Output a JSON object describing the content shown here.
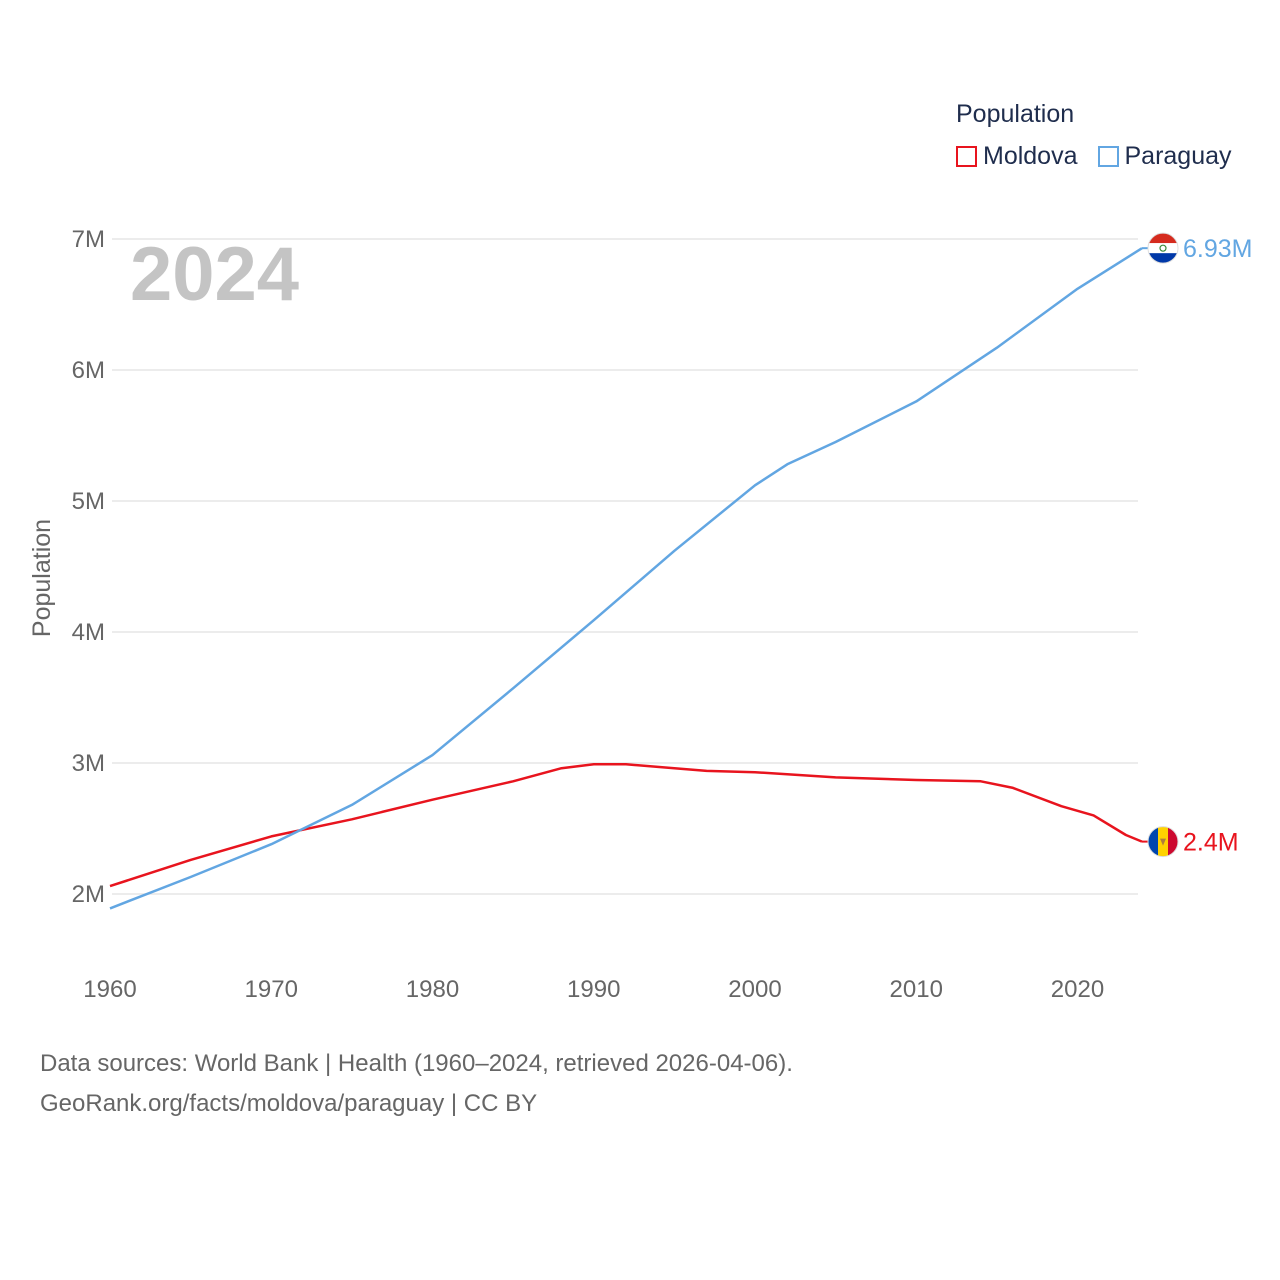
{
  "legend": {
    "title": "Population",
    "items": [
      {
        "name": "Moldova",
        "color": "#e8141e"
      },
      {
        "name": "Paraguay",
        "color": "#62a6e2"
      }
    ]
  },
  "chart_data": {
    "type": "line",
    "title": "Population",
    "year_label": "2024",
    "xlabel": "",
    "ylabel": "Population",
    "xlim": [
      1960,
      2024
    ],
    "ylim": [
      1500000,
      7000000
    ],
    "x_ticks": [
      1960,
      1970,
      1980,
      1990,
      2000,
      2010,
      2020
    ],
    "y_ticks": [
      {
        "value": 2000000,
        "label": "2M"
      },
      {
        "value": 3000000,
        "label": "3M"
      },
      {
        "value": 4000000,
        "label": "4M"
      },
      {
        "value": 5000000,
        "label": "5M"
      },
      {
        "value": 6000000,
        "label": "6M"
      },
      {
        "value": 7000000,
        "label": "7M"
      }
    ],
    "series": [
      {
        "name": "Moldova",
        "color": "#e8141e",
        "end_label": "2.4M",
        "flag": "moldova-flag",
        "points": [
          [
            1960,
            2060000
          ],
          [
            1965,
            2260000
          ],
          [
            1970,
            2440000
          ],
          [
            1975,
            2570000
          ],
          [
            1980,
            2720000
          ],
          [
            1985,
            2860000
          ],
          [
            1988,
            2960000
          ],
          [
            1990,
            2990000
          ],
          [
            1992,
            2990000
          ],
          [
            1995,
            2960000
          ],
          [
            1997,
            2940000
          ],
          [
            2000,
            2930000
          ],
          [
            2005,
            2890000
          ],
          [
            2010,
            2870000
          ],
          [
            2014,
            2860000
          ],
          [
            2016,
            2810000
          ],
          [
            2019,
            2670000
          ],
          [
            2021,
            2600000
          ],
          [
            2023,
            2450000
          ],
          [
            2024,
            2400000
          ]
        ]
      },
      {
        "name": "Paraguay",
        "color": "#62a6e2",
        "end_label": "6.93M",
        "flag": "paraguay-flag",
        "points": [
          [
            1960,
            1890000
          ],
          [
            1965,
            2130000
          ],
          [
            1970,
            2380000
          ],
          [
            1975,
            2680000
          ],
          [
            1980,
            3060000
          ],
          [
            1985,
            3570000
          ],
          [
            1990,
            4090000
          ],
          [
            1995,
            4620000
          ],
          [
            2000,
            5120000
          ],
          [
            2002,
            5280000
          ],
          [
            2005,
            5450000
          ],
          [
            2010,
            5760000
          ],
          [
            2015,
            6170000
          ],
          [
            2020,
            6620000
          ],
          [
            2024,
            6930000
          ]
        ]
      }
    ]
  },
  "footer": {
    "line1": "Data sources: World Bank | Health (1960–2024, retrieved 2026-04-06).",
    "line2": "GeoRank.org/facts/moldova/paraguay | CC BY"
  }
}
